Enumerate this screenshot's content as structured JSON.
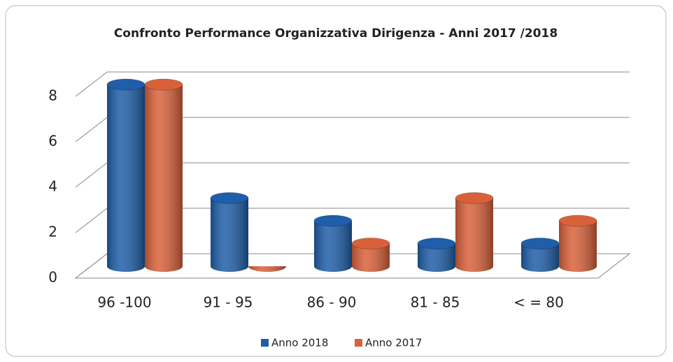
{
  "chart_data": {
    "type": "bar3d",
    "title": "Confronto Performance Organizzativa Dirigenza - Anni 2017 /2018",
    "categories": [
      "96 -100",
      "91 - 95",
      "86 - 90",
      "81 - 85",
      "< = 80"
    ],
    "series": [
      {
        "name": "Anno 2018",
        "color": "#1f5ea8",
        "values": [
          8,
          3,
          2,
          1,
          1
        ]
      },
      {
        "name": "Anno 2017",
        "color": "#d9613a",
        "values": [
          8,
          0,
          1,
          3,
          2
        ]
      }
    ],
    "ylim": [
      0,
      8
    ],
    "yticks": [
      0,
      2,
      4,
      6,
      8
    ],
    "grid": true,
    "legend": "bottom"
  }
}
